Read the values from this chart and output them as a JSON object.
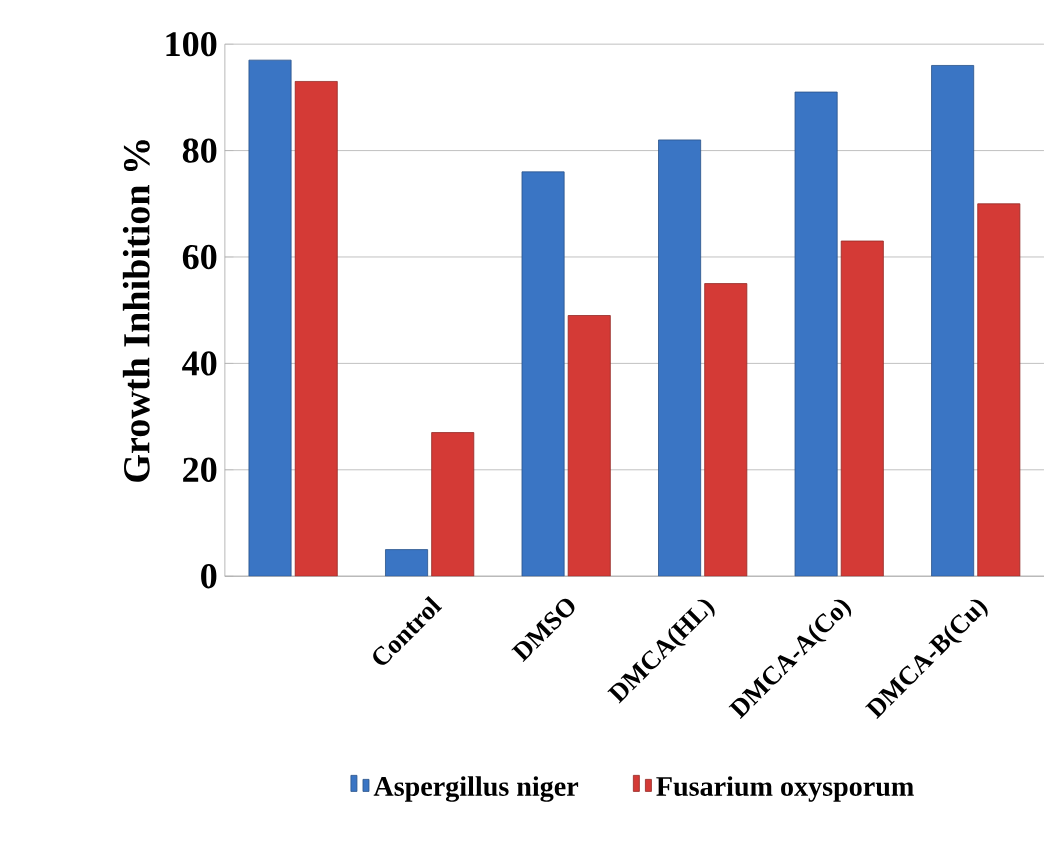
{
  "chart_data": {
    "type": "bar",
    "ylabel": "Growth Inhibition %",
    "categories": [
      null,
      "Control",
      "DMSO",
      "DMCA(HL)",
      "DMCA-A(Co)",
      "DMCA-B(Cu)"
    ],
    "series": [
      {
        "name": "Aspergillus niger",
        "color": "#3a75c4",
        "values": [
          97,
          5,
          76,
          82,
          91,
          96
        ]
      },
      {
        "name": "Fusarium oxysporum",
        "color": "#d43a36",
        "values": [
          93,
          27,
          49,
          55,
          63,
          70
        ]
      }
    ],
    "ylim": [
      0,
      100
    ],
    "yticks": [
      0,
      20,
      40,
      60,
      80,
      100
    ],
    "grid": "y",
    "legend": "bottom"
  }
}
